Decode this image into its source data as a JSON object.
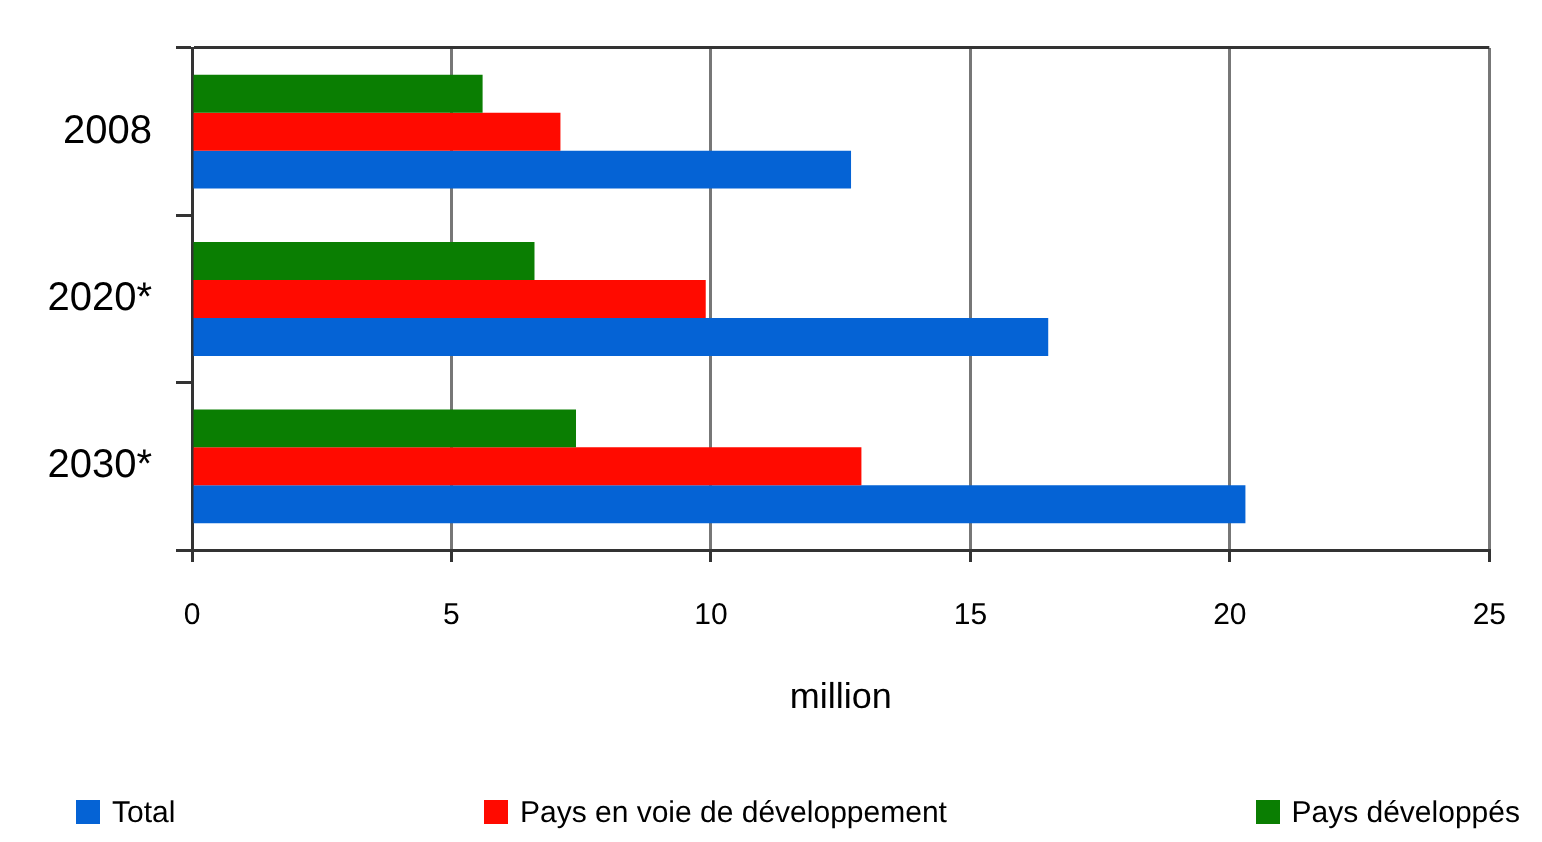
{
  "chart_data": {
    "type": "bar",
    "orientation": "horizontal",
    "categories": [
      "2008",
      "2020*",
      "2030*"
    ],
    "series": [
      {
        "name": "Total",
        "color": "#0563d5",
        "values": [
          12.7,
          16.5,
          20.3
        ]
      },
      {
        "name": "Pays en voie de développement",
        "color": "#ff0a00",
        "values": [
          7.1,
          9.9,
          12.9
        ]
      },
      {
        "name": "Pays développés",
        "color": "#0a7e02",
        "values": [
          5.6,
          6.6,
          7.4
        ]
      }
    ],
    "xlabel": "million",
    "xlim": [
      0,
      25
    ],
    "xticks": [
      0,
      5,
      10,
      15,
      20,
      25
    ],
    "grid": "x",
    "legend": "bottom"
  }
}
